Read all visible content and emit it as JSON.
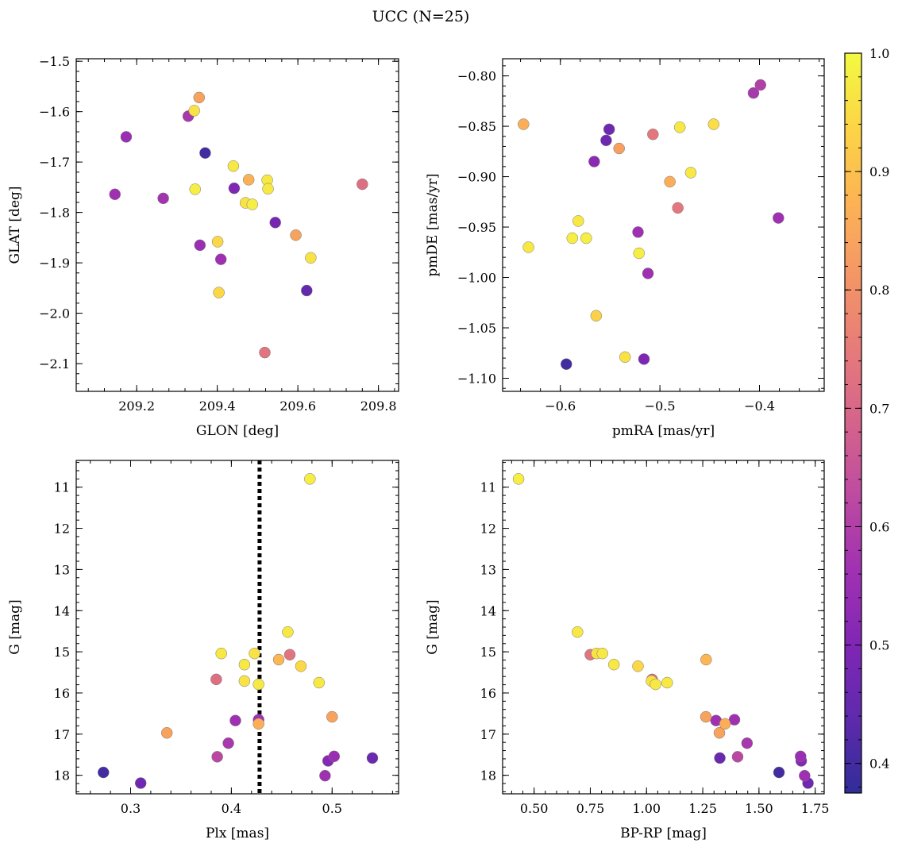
{
  "title": "UCC (N=25)",
  "chart_data": [
    {
      "type": "scatter",
      "xlabel": "GLON [deg]",
      "ylabel": "GLAT [deg]",
      "xlim": [
        209.05,
        209.85
      ],
      "ylim": [
        -2.155,
        -1.495
      ],
      "y_inverted": false,
      "xticks": [
        209.2,
        209.4,
        209.6,
        209.8
      ],
      "xticklabels": [
        "209.2",
        "209.4",
        "209.6",
        "209.8"
      ],
      "yticks": [
        -1.5,
        -1.6,
        -1.7,
        -1.8,
        -1.9,
        -2.0,
        -2.1
      ],
      "yticklabels": [
        "−1.5",
        "−1.6",
        "−1.7",
        "−1.8",
        "−1.9",
        "−2.0",
        "−2.1"
      ],
      "points": [
        {
          "x": 209.355,
          "y": -1.572,
          "c": 0.84
        },
        {
          "x": 209.343,
          "y": -1.598,
          "c": 0.96
        },
        {
          "x": 209.328,
          "y": -1.609,
          "c": 0.58
        },
        {
          "x": 209.174,
          "y": -1.65,
          "c": 0.55
        },
        {
          "x": 209.37,
          "y": -1.682,
          "c": 0.4
        },
        {
          "x": 209.44,
          "y": -1.708,
          "c": 0.97
        },
        {
          "x": 209.478,
          "y": -1.735,
          "c": 0.87
        },
        {
          "x": 209.524,
          "y": -1.736,
          "c": 0.97
        },
        {
          "x": 209.76,
          "y": -1.744,
          "c": 0.72
        },
        {
          "x": 209.442,
          "y": -1.752,
          "c": 0.5
        },
        {
          "x": 209.345,
          "y": -1.754,
          "c": 0.98
        },
        {
          "x": 209.526,
          "y": -1.753,
          "c": 0.97
        },
        {
          "x": 209.146,
          "y": -1.764,
          "c": 0.56
        },
        {
          "x": 209.266,
          "y": -1.772,
          "c": 0.57
        },
        {
          "x": 209.47,
          "y": -1.781,
          "c": 0.96
        },
        {
          "x": 209.487,
          "y": -1.784,
          "c": 0.98
        },
        {
          "x": 209.544,
          "y": -1.82,
          "c": 0.48
        },
        {
          "x": 209.595,
          "y": -1.845,
          "c": 0.84
        },
        {
          "x": 209.401,
          "y": -1.858,
          "c": 0.94
        },
        {
          "x": 209.357,
          "y": -1.865,
          "c": 0.55
        },
        {
          "x": 209.632,
          "y": -1.89,
          "c": 0.96
        },
        {
          "x": 209.409,
          "y": -1.893,
          "c": 0.56
        },
        {
          "x": 209.622,
          "y": -1.955,
          "c": 0.45
        },
        {
          "x": 209.404,
          "y": -1.959,
          "c": 0.94
        },
        {
          "x": 209.518,
          "y": -2.078,
          "c": 0.73
        }
      ]
    },
    {
      "type": "scatter",
      "xlabel": "pmRA [mas/yr]",
      "ylabel": "pmDE [mas/yr]",
      "xlim": [
        -0.658,
        -0.335
      ],
      "ylim": [
        -1.113,
        -0.783
      ],
      "y_inverted": false,
      "xticks": [
        -0.6,
        -0.5,
        -0.4
      ],
      "xticklabels": [
        "−0.6",
        "−0.5",
        "−0.4"
      ],
      "yticks": [
        -0.8,
        -0.85,
        -0.9,
        -0.95,
        -1.0,
        -1.05,
        -1.1
      ],
      "yticklabels": [
        "−0.80",
        "−0.85",
        "−0.90",
        "−0.95",
        "−1.00",
        "−1.05",
        "−1.10"
      ],
      "points": [
        {
          "x": -0.399,
          "y": -0.809,
          "c": 0.6
        },
        {
          "x": -0.406,
          "y": -0.817,
          "c": 0.58
        },
        {
          "x": -0.637,
          "y": -0.848,
          "c": 0.86
        },
        {
          "x": -0.446,
          "y": -0.848,
          "c": 0.95
        },
        {
          "x": -0.48,
          "y": -0.851,
          "c": 0.97
        },
        {
          "x": -0.551,
          "y": -0.853,
          "c": 0.47
        },
        {
          "x": -0.507,
          "y": -0.858,
          "c": 0.74
        },
        {
          "x": -0.554,
          "y": -0.864,
          "c": 0.47
        },
        {
          "x": -0.541,
          "y": -0.872,
          "c": 0.83
        },
        {
          "x": -0.566,
          "y": -0.885,
          "c": 0.52
        },
        {
          "x": -0.469,
          "y": -0.896,
          "c": 0.97
        },
        {
          "x": -0.49,
          "y": -0.905,
          "c": 0.86
        },
        {
          "x": -0.482,
          "y": -0.931,
          "c": 0.74
        },
        {
          "x": -0.381,
          "y": -0.941,
          "c": 0.56
        },
        {
          "x": -0.582,
          "y": -0.944,
          "c": 0.97
        },
        {
          "x": -0.522,
          "y": -0.955,
          "c": 0.56
        },
        {
          "x": -0.588,
          "y": -0.961,
          "c": 0.98
        },
        {
          "x": -0.574,
          "y": -0.961,
          "c": 0.98
        },
        {
          "x": -0.632,
          "y": -0.97,
          "c": 0.97
        },
        {
          "x": -0.521,
          "y": -0.976,
          "c": 0.98
        },
        {
          "x": -0.512,
          "y": -0.996,
          "c": 0.56
        },
        {
          "x": -0.564,
          "y": -1.038,
          "c": 0.93
        },
        {
          "x": -0.535,
          "y": -1.079,
          "c": 0.96
        },
        {
          "x": -0.516,
          "y": -1.081,
          "c": 0.5
        },
        {
          "x": -0.594,
          "y": -1.086,
          "c": 0.4
        }
      ]
    },
    {
      "type": "scatter",
      "xlabel": "Plx [mas]",
      "ylabel": "G [mag]",
      "xlim": [
        0.246,
        0.566
      ],
      "ylim": [
        18.45,
        10.35
      ],
      "y_inverted": true,
      "xticks": [
        0.3,
        0.4,
        0.5
      ],
      "xticklabels": [
        "0.3",
        "0.4",
        "0.5"
      ],
      "yticks": [
        11,
        12,
        13,
        14,
        15,
        16,
        17,
        18
      ],
      "yticklabels": [
        "11",
        "12",
        "13",
        "14",
        "15",
        "16",
        "17",
        "18"
      ],
      "vline": {
        "x": 0.428,
        "style": "dotted"
      },
      "points": [
        {
          "x": 0.478,
          "y": 10.8,
          "c": 0.98
        },
        {
          "x": 0.456,
          "y": 14.52,
          "c": 0.97
        },
        {
          "x": 0.39,
          "y": 15.04,
          "c": 0.97
        },
        {
          "x": 0.423,
          "y": 15.04,
          "c": 0.96
        },
        {
          "x": 0.458,
          "y": 15.07,
          "c": 0.73
        },
        {
          "x": 0.447,
          "y": 15.19,
          "c": 0.88
        },
        {
          "x": 0.413,
          "y": 15.31,
          "c": 0.97
        },
        {
          "x": 0.469,
          "y": 15.35,
          "c": 0.94
        },
        {
          "x": 0.385,
          "y": 15.67,
          "c": 0.72
        },
        {
          "x": 0.413,
          "y": 15.71,
          "c": 0.96
        },
        {
          "x": 0.487,
          "y": 15.75,
          "c": 0.97
        },
        {
          "x": 0.427,
          "y": 15.79,
          "c": 0.97
        },
        {
          "x": 0.5,
          "y": 16.58,
          "c": 0.84
        },
        {
          "x": 0.404,
          "y": 16.67,
          "c": 0.56
        },
        {
          "x": 0.427,
          "y": 16.65,
          "c": 0.56
        },
        {
          "x": 0.427,
          "y": 16.75,
          "c": 0.86
        },
        {
          "x": 0.336,
          "y": 16.97,
          "c": 0.84
        },
        {
          "x": 0.397,
          "y": 17.22,
          "c": 0.58
        },
        {
          "x": 0.386,
          "y": 17.55,
          "c": 0.62
        },
        {
          "x": 0.502,
          "y": 17.54,
          "c": 0.55
        },
        {
          "x": 0.54,
          "y": 17.58,
          "c": 0.46
        },
        {
          "x": 0.496,
          "y": 17.65,
          "c": 0.51
        },
        {
          "x": 0.273,
          "y": 17.93,
          "c": 0.4
        },
        {
          "x": 0.493,
          "y": 18.01,
          "c": 0.56
        },
        {
          "x": 0.31,
          "y": 18.19,
          "c": 0.47
        }
      ]
    },
    {
      "type": "scatter",
      "xlabel": "BP-RP [mag]",
      "ylabel": "G [mag]",
      "xlim": [
        0.36,
        1.79
      ],
      "ylim": [
        18.45,
        10.35
      ],
      "y_inverted": true,
      "xticks": [
        0.5,
        0.75,
        1.0,
        1.25,
        1.5,
        1.75
      ],
      "xticklabels": [
        "0.50",
        "0.75",
        "1.00",
        "1.25",
        "1.50",
        "1.75"
      ],
      "yticks": [
        11,
        12,
        13,
        14,
        15,
        16,
        17,
        18
      ],
      "yticklabels": [
        "11",
        "12",
        "13",
        "14",
        "15",
        "16",
        "17",
        "18"
      ],
      "points": [
        {
          "x": 0.431,
          "y": 10.8,
          "c": 0.98
        },
        {
          "x": 0.693,
          "y": 14.52,
          "c": 0.97
        },
        {
          "x": 0.75,
          "y": 15.07,
          "c": 0.73
        },
        {
          "x": 0.778,
          "y": 15.04,
          "c": 0.96
        },
        {
          "x": 0.804,
          "y": 15.04,
          "c": 0.97
        },
        {
          "x": 0.855,
          "y": 15.31,
          "c": 0.97
        },
        {
          "x": 0.962,
          "y": 15.35,
          "c": 0.94
        },
        {
          "x": 1.265,
          "y": 15.19,
          "c": 0.88
        },
        {
          "x": 1.025,
          "y": 15.67,
          "c": 0.72
        },
        {
          "x": 1.022,
          "y": 15.71,
          "c": 0.96
        },
        {
          "x": 1.04,
          "y": 15.79,
          "c": 0.97
        },
        {
          "x": 1.092,
          "y": 15.75,
          "c": 0.97
        },
        {
          "x": 1.264,
          "y": 16.58,
          "c": 0.84
        },
        {
          "x": 1.309,
          "y": 16.67,
          "c": 0.56
        },
        {
          "x": 1.391,
          "y": 16.65,
          "c": 0.56
        },
        {
          "x": 1.349,
          "y": 16.75,
          "c": 0.86
        },
        {
          "x": 1.324,
          "y": 16.97,
          "c": 0.84
        },
        {
          "x": 1.447,
          "y": 17.22,
          "c": 0.58
        },
        {
          "x": 1.326,
          "y": 17.58,
          "c": 0.46
        },
        {
          "x": 1.405,
          "y": 17.55,
          "c": 0.62
        },
        {
          "x": 1.685,
          "y": 17.54,
          "c": 0.55
        },
        {
          "x": 1.688,
          "y": 17.65,
          "c": 0.51
        },
        {
          "x": 1.589,
          "y": 17.93,
          "c": 0.4
        },
        {
          "x": 1.703,
          "y": 18.01,
          "c": 0.56
        },
        {
          "x": 1.718,
          "y": 18.19,
          "c": 0.47
        }
      ]
    }
  ],
  "colorbar": {
    "colormap": "plasma",
    "min": 0.375,
    "max": 1.0,
    "ticks": [
      0.4,
      0.5,
      0.6,
      0.7,
      0.8,
      0.9,
      1.0
    ],
    "ticklabels": [
      "0.4",
      "0.5",
      "0.6",
      "0.7",
      "0.8",
      "0.9",
      "1.0"
    ],
    "alpha": 0.85
  }
}
